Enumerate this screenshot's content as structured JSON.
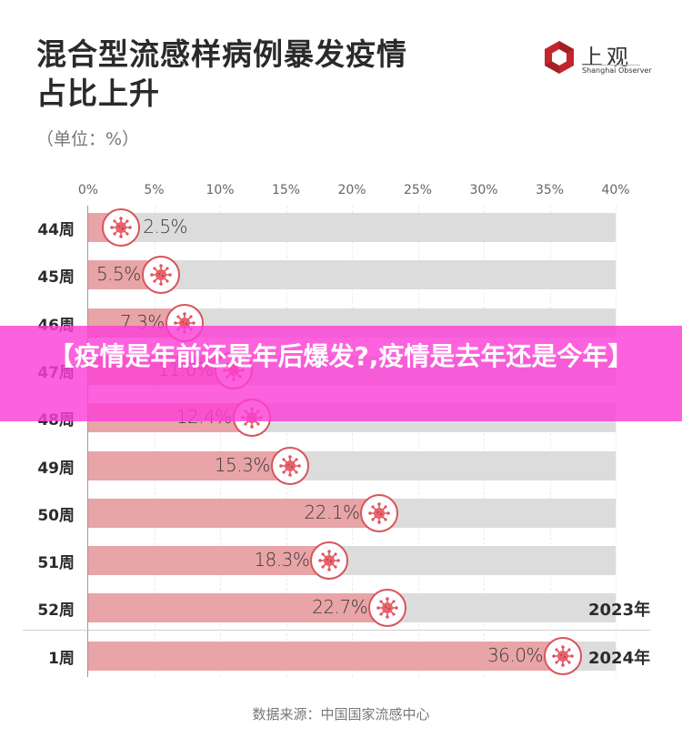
{
  "header": {
    "title_line1": "混合型流感样病例暴发疫情",
    "title_line2": "占比上升",
    "unit": "（单位：%）"
  },
  "logo": {
    "cn": "上观",
    "en": "Shanghai Observer",
    "color": "#c0262c"
  },
  "overlay": {
    "text": "【疫情是年前还是年后爆发?,疫情是去年还是今年】",
    "color": "#fb40d6"
  },
  "footer": {
    "source": "数据来源：中国国家流感中心"
  },
  "colors": {
    "bar_fill": "#e8a4a6",
    "bar_track": "#dcdcdc",
    "badge_border": "#d9545a"
  },
  "chart_data": {
    "type": "bar",
    "orientation": "horizontal",
    "title": "混合型流感样病例暴发疫情占比上升",
    "subtitle": "（单位：%）",
    "xlabel": "",
    "ylabel": "",
    "xlim": [
      0,
      40
    ],
    "x_ticks": [
      "0%",
      "5%",
      "10%",
      "15%",
      "20%",
      "25%",
      "30%",
      "35%",
      "40%"
    ],
    "grid": true,
    "categories": [
      "44周",
      "45周",
      "46周",
      "47周",
      "48周",
      "49周",
      "50周",
      "51周",
      "52周",
      "1周"
    ],
    "values": [
      2.5,
      5.5,
      7.3,
      11.0,
      12.4,
      15.3,
      22.1,
      18.3,
      22.7,
      36.0
    ],
    "value_labels": [
      "2.5%",
      "5.5%",
      "7.3%",
      "11.0%",
      "12.4%",
      "15.3%",
      "22.1%",
      "18.3%",
      "22.7%",
      "36.0%"
    ],
    "group_annotations": [
      {
        "label": "2023年",
        "applies_to": [
          "44周",
          "45周",
          "46周",
          "47周",
          "48周",
          "49周",
          "50周",
          "51周",
          "52周"
        ]
      },
      {
        "label": "2024年",
        "applies_to": [
          "1周"
        ]
      }
    ],
    "source": "数据来源：中国国家流感中心"
  }
}
